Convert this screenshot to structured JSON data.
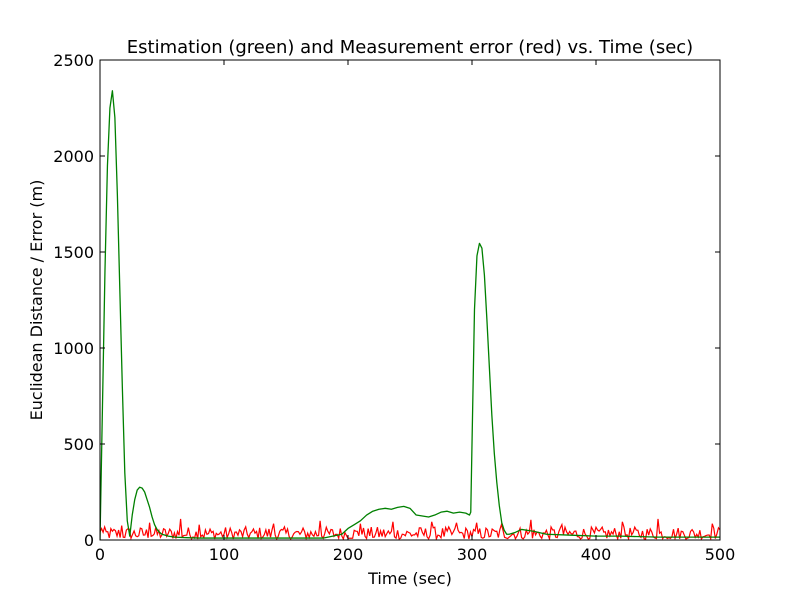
{
  "chart_data": {
    "type": "line",
    "title": "Estimation (green) and Measurement error (red) vs. Time (sec)",
    "xlabel": "Time (sec)",
    "ylabel": "Euclidean Distance / Error (m)",
    "xlim": [
      0,
      500
    ],
    "ylim": [
      0,
      2500
    ],
    "xticks": [
      0,
      100,
      200,
      300,
      400,
      500
    ],
    "yticks": [
      0,
      500,
      1000,
      1500,
      2000,
      2500
    ],
    "xtick_labels": [
      "0",
      "100",
      "200",
      "300",
      "400",
      "500"
    ],
    "ytick_labels": [
      "0",
      "500",
      "1000",
      "1500",
      "2000",
      "2500"
    ],
    "grid": false,
    "series": [
      {
        "color": "#008000",
        "x": [
          0,
          2,
          4,
          6,
          8,
          10,
          12,
          14,
          16,
          18,
          20,
          22,
          24,
          26,
          28,
          30,
          32,
          34,
          36,
          38,
          40,
          42,
          44,
          46,
          48,
          50,
          55,
          60,
          70,
          80,
          100,
          120,
          150,
          180,
          195,
          200,
          205,
          210,
          215,
          220,
          225,
          230,
          235,
          240,
          245,
          250,
          255,
          260,
          265,
          270,
          275,
          280,
          285,
          290,
          295,
          298,
          299,
          300,
          302,
          304,
          306,
          308,
          310,
          312,
          314,
          316,
          318,
          320,
          322,
          324,
          326,
          328,
          330,
          335,
          340,
          345,
          350,
          360,
          380,
          400,
          420,
          450,
          480,
          500
        ],
        "y": [
          0,
          700,
          1400,
          1950,
          2250,
          2340,
          2200,
          1800,
          1300,
          800,
          350,
          100,
          20,
          130,
          210,
          260,
          275,
          270,
          250,
          210,
          170,
          120,
          80,
          55,
          40,
          30,
          20,
          15,
          12,
          10,
          10,
          10,
          10,
          10,
          30,
          60,
          80,
          100,
          130,
          150,
          160,
          165,
          160,
          170,
          175,
          165,
          130,
          125,
          120,
          130,
          145,
          150,
          140,
          145,
          140,
          130,
          145,
          500,
          1200,
          1480,
          1545,
          1520,
          1380,
          1150,
          900,
          650,
          450,
          300,
          180,
          90,
          50,
          30,
          30,
          40,
          55,
          50,
          45,
          30,
          25,
          20,
          20,
          15,
          15,
          15
        ]
      },
      {
        "color": "#ff0000",
        "x_range": [
          0,
          500
        ],
        "n_points": 400,
        "typical_range": [
          5,
          80
        ],
        "peaks": [
          [
            1,
            60
          ],
          [
            18,
            75
          ],
          [
            40,
            90
          ],
          [
            65,
            110
          ],
          [
            80,
            80
          ],
          [
            140,
            85
          ],
          [
            177,
            100
          ],
          [
            210,
            85
          ],
          [
            236,
            95
          ],
          [
            268,
            95
          ],
          [
            288,
            90
          ],
          [
            304,
            90
          ],
          [
            324,
            80
          ],
          [
            348,
            105
          ],
          [
            372,
            80
          ],
          [
            421,
            95
          ],
          [
            450,
            110
          ],
          [
            494,
            85
          ]
        ]
      }
    ]
  }
}
